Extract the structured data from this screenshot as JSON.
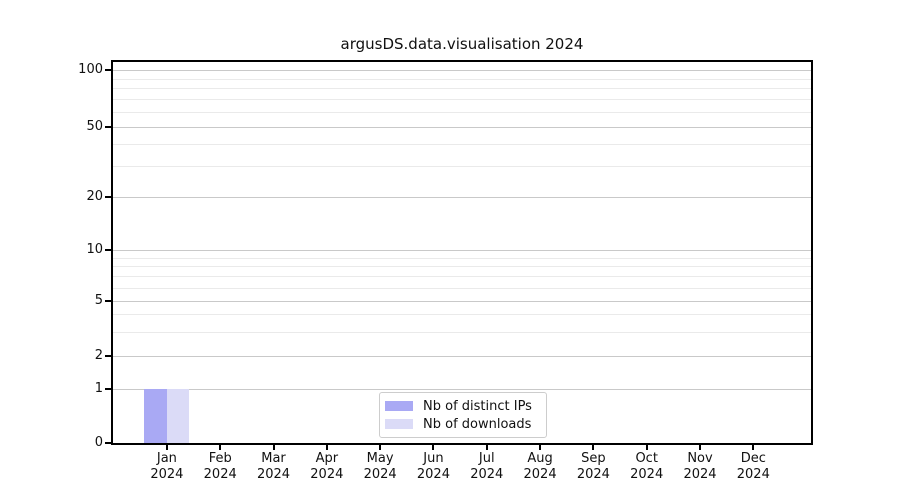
{
  "chart_data": {
    "type": "bar",
    "title": "argusDS.data.visualisation 2024",
    "categories": [
      "Jan 2024",
      "Feb 2024",
      "Mar 2024",
      "Apr 2024",
      "May 2024",
      "Jun 2024",
      "Jul 2024",
      "Aug 2024",
      "Sep 2024",
      "Oct 2024",
      "Nov 2024",
      "Dec 2024"
    ],
    "series": [
      {
        "name": "Nb of distinct IPs",
        "color": "#a9a9f4",
        "values": [
          1,
          0,
          0,
          0,
          0,
          0,
          0,
          0,
          0,
          0,
          0,
          0
        ]
      },
      {
        "name": "Nb of downloads",
        "color": "#dbdbf7",
        "values": [
          1,
          0,
          0,
          0,
          0,
          0,
          0,
          0,
          0,
          0,
          0,
          0
        ]
      }
    ],
    "xlabel": "",
    "ylabel": "",
    "yscale": "symlog",
    "yticks": [
      0,
      1,
      2,
      5,
      10,
      20,
      50,
      100
    ],
    "ylim": [
      0,
      110
    ],
    "grid": true,
    "legend_position": "lower center"
  }
}
